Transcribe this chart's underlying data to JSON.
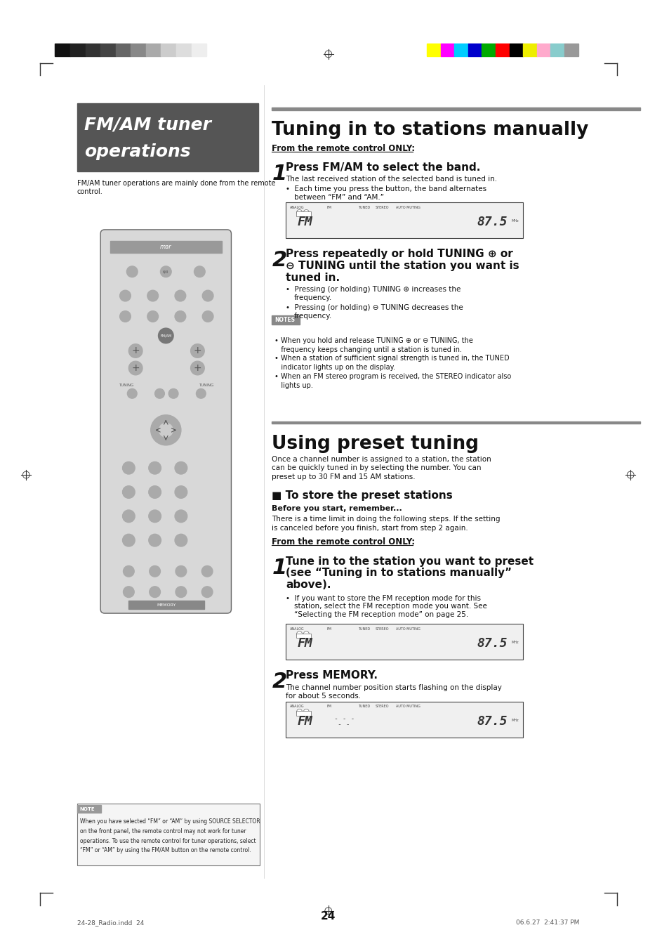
{
  "page_bg": "#ffffff",
  "page_num": "24",
  "footer_left": "24-28_Radio.indd  24",
  "footer_right": "06.6.27  2:41:37 PM",
  "header_colors_left": [
    "#111111",
    "#222222",
    "#333333",
    "#444444",
    "#666666",
    "#888888",
    "#aaaaaa",
    "#cccccc",
    "#dddddd",
    "#eeeeee"
  ],
  "header_colors_right": [
    "#ffff00",
    "#ff00ff",
    "#00ccff",
    "#0000cc",
    "#00aa00",
    "#ff0000",
    "#000000",
    "#eeee00",
    "#ffaacc",
    "#88cccc",
    "#999999"
  ],
  "left_title_box_bg": "#555555",
  "left_title_text_line1": "FM/AM tuner",
  "left_title_text_line2": "operations",
  "left_subtitle_line1": "FM/AM tuner operations are mainly done from the remote",
  "left_subtitle_line2": "control.",
  "right_section1_title": "Tuning in to stations manually",
  "right_section1_label": "From the remote control ONLY:",
  "section2_title": "Using preset tuning",
  "section2_body_line1": "Once a channel number is assigned to a station, the station",
  "section2_body_line2": "can be quickly tuned in by selecting the number. You can",
  "section2_body_line3": "preset up to 30 FM and 15 AM stations.",
  "subsection_title": "■ To store the preset stations",
  "before_start": "Before you start, remember...",
  "before_start_body_line1": "There is a time limit in doing the following steps. If the setting",
  "before_start_body_line2": "is canceled before you finish, start from step 2 again.",
  "from_remote_label2": "From the remote control ONLY:",
  "notes_items": [
    "• When you hold and release TUNING ⊕ or ⊖ TUNING, the",
    "   frequency keeps changing until a station is tuned in.",
    "• When a station of sufficient signal strength is tuned in, the TUNED",
    "   indicator lights up on the display.",
    "• When an FM stereo program is received, the STEREO indicator also",
    "   lights up."
  ],
  "note_lines": [
    "When you have selected “FM” or “AM” by using SOURCE SELECTOR",
    "on the front panel, the remote control may not work for tuner",
    "operations. To use the remote control for tuner operations, select",
    "“FM” or “AM” by using the FM/AM button on the remote control."
  ]
}
